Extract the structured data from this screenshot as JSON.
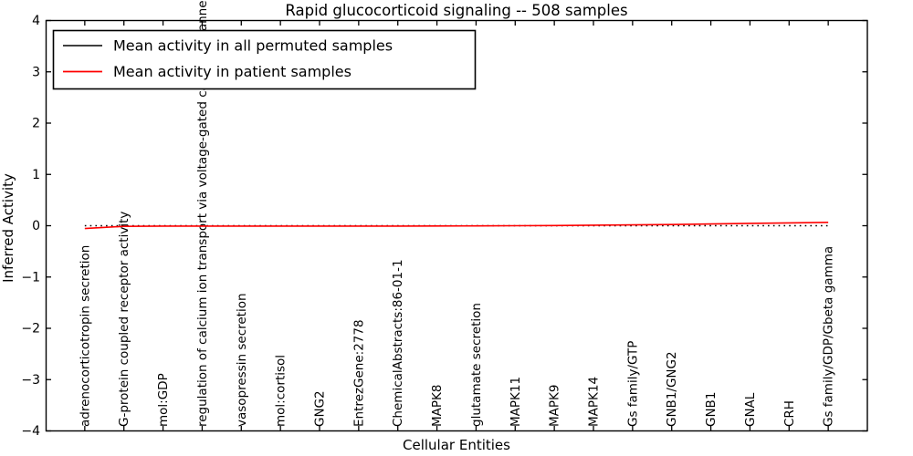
{
  "figure": {
    "title": "Rapid glucocorticoid signaling -- 508 samples"
  },
  "chart_data": {
    "type": "line",
    "title": "Rapid glucocorticoid signaling -- 508 samples",
    "xlabel": "Cellular Entities",
    "ylabel": "Inferred Activity",
    "ylim": [
      -4,
      4
    ],
    "grid": false,
    "legend_position": "upper left",
    "frame_color": "#000000",
    "background_color": "#ffffff",
    "ytick_values": [
      4,
      3,
      2,
      1,
      0,
      -1,
      -2,
      -3,
      -4
    ],
    "ytick_labels": [
      "4",
      "3",
      "2",
      "1",
      "0",
      "−1",
      "−2",
      "−3",
      "−4"
    ],
    "categories": [
      "adrenocorticotropin secretion",
      "G-protein coupled receptor activity",
      "mol:GDP",
      "regulation of calcium ion transport via voltage-gated calcium channel",
      "vasopressin secretion",
      "mol:cortisol",
      "GNG2",
      "EntrezGene:2778",
      "ChemicalAbstracts:86-01-1",
      "MAPK8",
      "glutamate secretion",
      "MAPK11",
      "MAPK9",
      "MAPK14",
      "Gs family/GTP",
      "GNB1/GNG2",
      "GNB1",
      "GNAL",
      "CRH",
      "Gs family/GDP/Gbeta gamma"
    ],
    "series": [
      {
        "name": "Mean activity in all permuted samples",
        "color": "#000000",
        "legend_linestyle": "solid",
        "plot_linestyle": "dotted",
        "values": [
          0,
          0,
          0,
          0,
          0,
          0,
          0,
          0,
          0,
          0,
          0,
          0,
          0,
          0,
          0,
          0,
          0,
          0,
          0,
          0
        ]
      },
      {
        "name": "Mean activity in patient samples",
        "color": "#ff0000",
        "legend_linestyle": "solid",
        "plot_linestyle": "solid",
        "values": [
          -0.055,
          -0.012,
          -0.008,
          -0.008,
          -0.008,
          -0.008,
          -0.008,
          -0.008,
          -0.008,
          -0.006,
          -0.004,
          0.0,
          0.004,
          0.01,
          0.016,
          0.024,
          0.034,
          0.045,
          0.055,
          0.065
        ]
      }
    ]
  }
}
